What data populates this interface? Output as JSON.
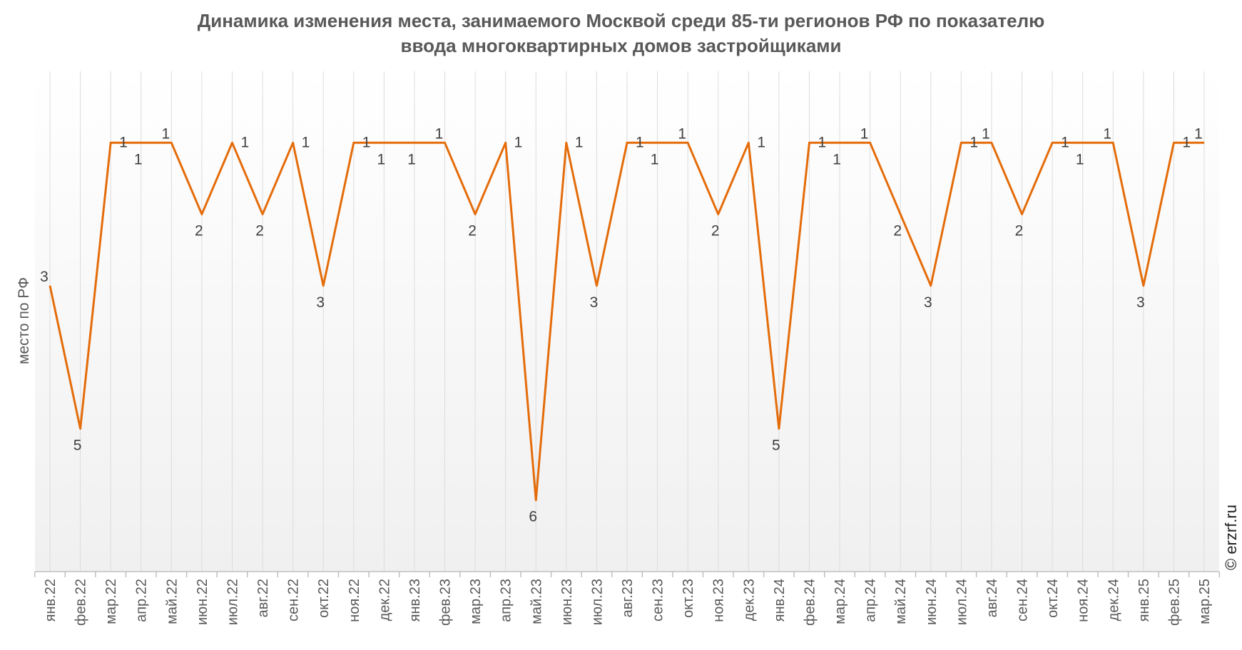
{
  "chart_data": {
    "type": "line",
    "title_lines": [
      "Динамика изменения места, занимаемого Москвой среди 85-ти регионов РФ по показателю",
      "ввода многоквартирных домов застройщиками"
    ],
    "ylabel": "место по РФ",
    "xlabel": "",
    "y_reversed": true,
    "ylim": [
      0,
      7
    ],
    "grid": "vertical",
    "line_color": "#E46C0A",
    "watermark": "© erzrf.ru",
    "categories": [
      "янв.22",
      "фев.22",
      "мар.22",
      "апр.22",
      "май.22",
      "июн.22",
      "июл.22",
      "авг.22",
      "сен.22",
      "окт.22",
      "ноя.22",
      "дек.22",
      "янв.23",
      "фев.23",
      "мар.23",
      "апр.23",
      "май.23",
      "июн.23",
      "июл.23",
      "авг.23",
      "сен.23",
      "окт.23",
      "ноя.23",
      "дек.23",
      "янв.24",
      "фев.24",
      "мар.24",
      "апр.24",
      "май.24",
      "июн.24",
      "июл.24",
      "авг.24",
      "сен.24",
      "окт.24",
      "ноя.24",
      "дек.24",
      "янв.25",
      "фев.25",
      "мар.25"
    ],
    "values": [
      3,
      5,
      1,
      1,
      1,
      2,
      1,
      2,
      1,
      3,
      1,
      1,
      1,
      1,
      2,
      1,
      6,
      1,
      3,
      1,
      1,
      1,
      2,
      1,
      5,
      1,
      1,
      1,
      2,
      3,
      1,
      1,
      2,
      1,
      1,
      1,
      3,
      1,
      1
    ]
  }
}
